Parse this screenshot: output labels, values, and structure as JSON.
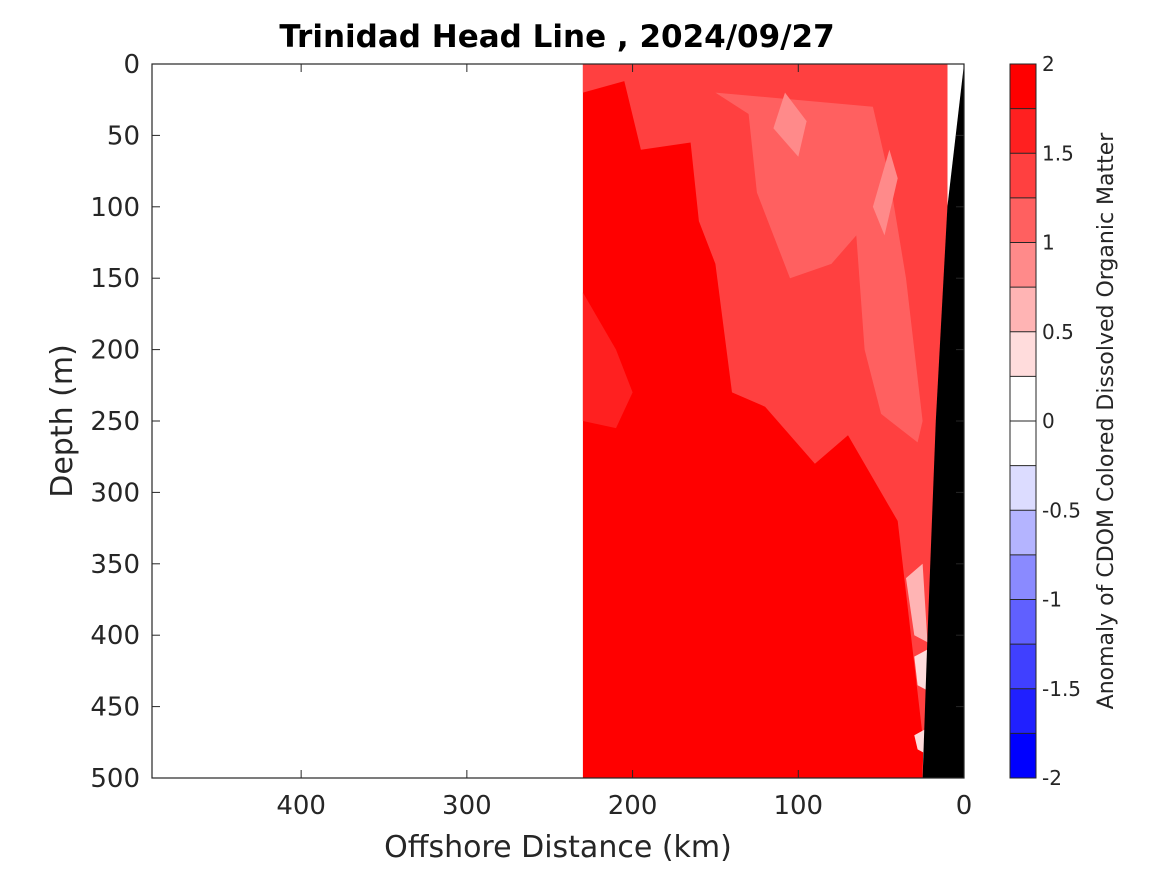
{
  "chart_data": {
    "type": "heatmap",
    "title": "Trinidad Head Line , 2024/09/27",
    "xlabel": "Offshore Distance (km)",
    "ylabel": "Depth (m)",
    "xlim": [
      490,
      0
    ],
    "ylim": [
      0,
      500
    ],
    "x_reversed": true,
    "y_reversed": true,
    "xticks": [
      400,
      300,
      200,
      100,
      0
    ],
    "yticks": [
      0,
      50,
      100,
      150,
      200,
      250,
      300,
      350,
      400,
      450,
      500
    ],
    "colorbar": {
      "label": "Anomaly of CDOM Colored Dissolved Organic Matter",
      "range": [
        -2,
        2
      ],
      "ticks": [
        2,
        1.5,
        1,
        0.5,
        0,
        -0.5,
        -1,
        -1.5,
        -2
      ],
      "levels": [
        {
          "from": 1.75,
          "to": 2.0,
          "color": "#ff0000"
        },
        {
          "from": 1.5,
          "to": 1.75,
          "color": "#ff2020"
        },
        {
          "from": 1.25,
          "to": 1.5,
          "color": "#ff4040"
        },
        {
          "from": 1.0,
          "to": 1.25,
          "color": "#ff6060"
        },
        {
          "from": 0.75,
          "to": 1.0,
          "color": "#ff8a8a"
        },
        {
          "from": 0.5,
          "to": 0.75,
          "color": "#ffb4b4"
        },
        {
          "from": 0.25,
          "to": 0.5,
          "color": "#ffdcdc"
        },
        {
          "from": 0.0,
          "to": 0.25,
          "color": "#ffffff"
        },
        {
          "from": -0.25,
          "to": 0.0,
          "color": "#ffffff"
        },
        {
          "from": -0.5,
          "to": -0.25,
          "color": "#dcdcff"
        },
        {
          "from": -0.75,
          "to": -0.5,
          "color": "#b4b4ff"
        },
        {
          "from": -1.0,
          "to": -0.75,
          "color": "#8a8aff"
        },
        {
          "from": -1.25,
          "to": -1.0,
          "color": "#6060ff"
        },
        {
          "from": -1.5,
          "to": -1.25,
          "color": "#4040ff"
        },
        {
          "from": -1.75,
          "to": -1.5,
          "color": "#2020ff"
        },
        {
          "from": -2.0,
          "to": -1.75,
          "color": "#0000ff"
        }
      ]
    },
    "data_extent_km": [
      0,
      230
    ],
    "bathymetry": {
      "description": "seafloor (black) along the inshore edge",
      "profile": [
        {
          "distance_km": 0,
          "depth_m": 0
        },
        {
          "distance_km": 10,
          "depth_m": 100
        },
        {
          "distance_km": 17,
          "depth_m": 250
        },
        {
          "distance_km": 22,
          "depth_m": 400
        },
        {
          "distance_km": 25,
          "depth_m": 500
        }
      ]
    },
    "regions": [
      {
        "anomaly": 1.8,
        "polygon": [
          [
            230,
            500
          ],
          [
            230,
            0
          ],
          [
            10,
            0
          ],
          [
            10,
            100
          ],
          [
            20,
            250
          ],
          [
            25,
            500
          ]
        ]
      },
      {
        "anomaly": 1.35,
        "polygon": [
          [
            230,
            0
          ],
          [
            230,
            20
          ],
          [
            205,
            12
          ],
          [
            195,
            60
          ],
          [
            165,
            55
          ],
          [
            160,
            110
          ],
          [
            150,
            140
          ],
          [
            140,
            230
          ],
          [
            120,
            240
          ],
          [
            90,
            280
          ],
          [
            70,
            260
          ],
          [
            40,
            320
          ],
          [
            22,
            500
          ],
          [
            10,
            500
          ],
          [
            10,
            0
          ]
        ]
      },
      {
        "anomaly": 1.1,
        "polygon": [
          [
            150,
            20
          ],
          [
            130,
            35
          ],
          [
            125,
            90
          ],
          [
            105,
            150
          ],
          [
            80,
            140
          ],
          [
            65,
            120
          ],
          [
            60,
            200
          ],
          [
            50,
            245
          ],
          [
            28,
            265
          ],
          [
            25,
            250
          ],
          [
            35,
            150
          ],
          [
            45,
            80
          ],
          [
            55,
            30
          ]
        ]
      },
      {
        "anomaly": 0.9,
        "polygon": [
          [
            115,
            45
          ],
          [
            108,
            20
          ],
          [
            95,
            40
          ],
          [
            100,
            65
          ]
        ]
      },
      {
        "anomaly": 0.9,
        "polygon": [
          [
            55,
            100
          ],
          [
            45,
            60
          ],
          [
            40,
            80
          ],
          [
            48,
            120
          ]
        ]
      },
      {
        "anomaly": 1.6,
        "polygon": [
          [
            230,
            160
          ],
          [
            230,
            250
          ],
          [
            210,
            255
          ],
          [
            200,
            230
          ],
          [
            210,
            200
          ]
        ]
      },
      {
        "anomaly": 0.6,
        "polygon": [
          [
            35,
            360
          ],
          [
            25,
            350
          ],
          [
            22,
            405
          ],
          [
            30,
            400
          ]
        ]
      },
      {
        "anomaly": 0.4,
        "polygon": [
          [
            30,
            415
          ],
          [
            22,
            410
          ],
          [
            20,
            440
          ],
          [
            28,
            435
          ]
        ]
      },
      {
        "anomaly": 0.3,
        "polygon": [
          [
            30,
            470
          ],
          [
            22,
            465
          ],
          [
            20,
            485
          ],
          [
            28,
            480
          ]
        ]
      }
    ]
  }
}
